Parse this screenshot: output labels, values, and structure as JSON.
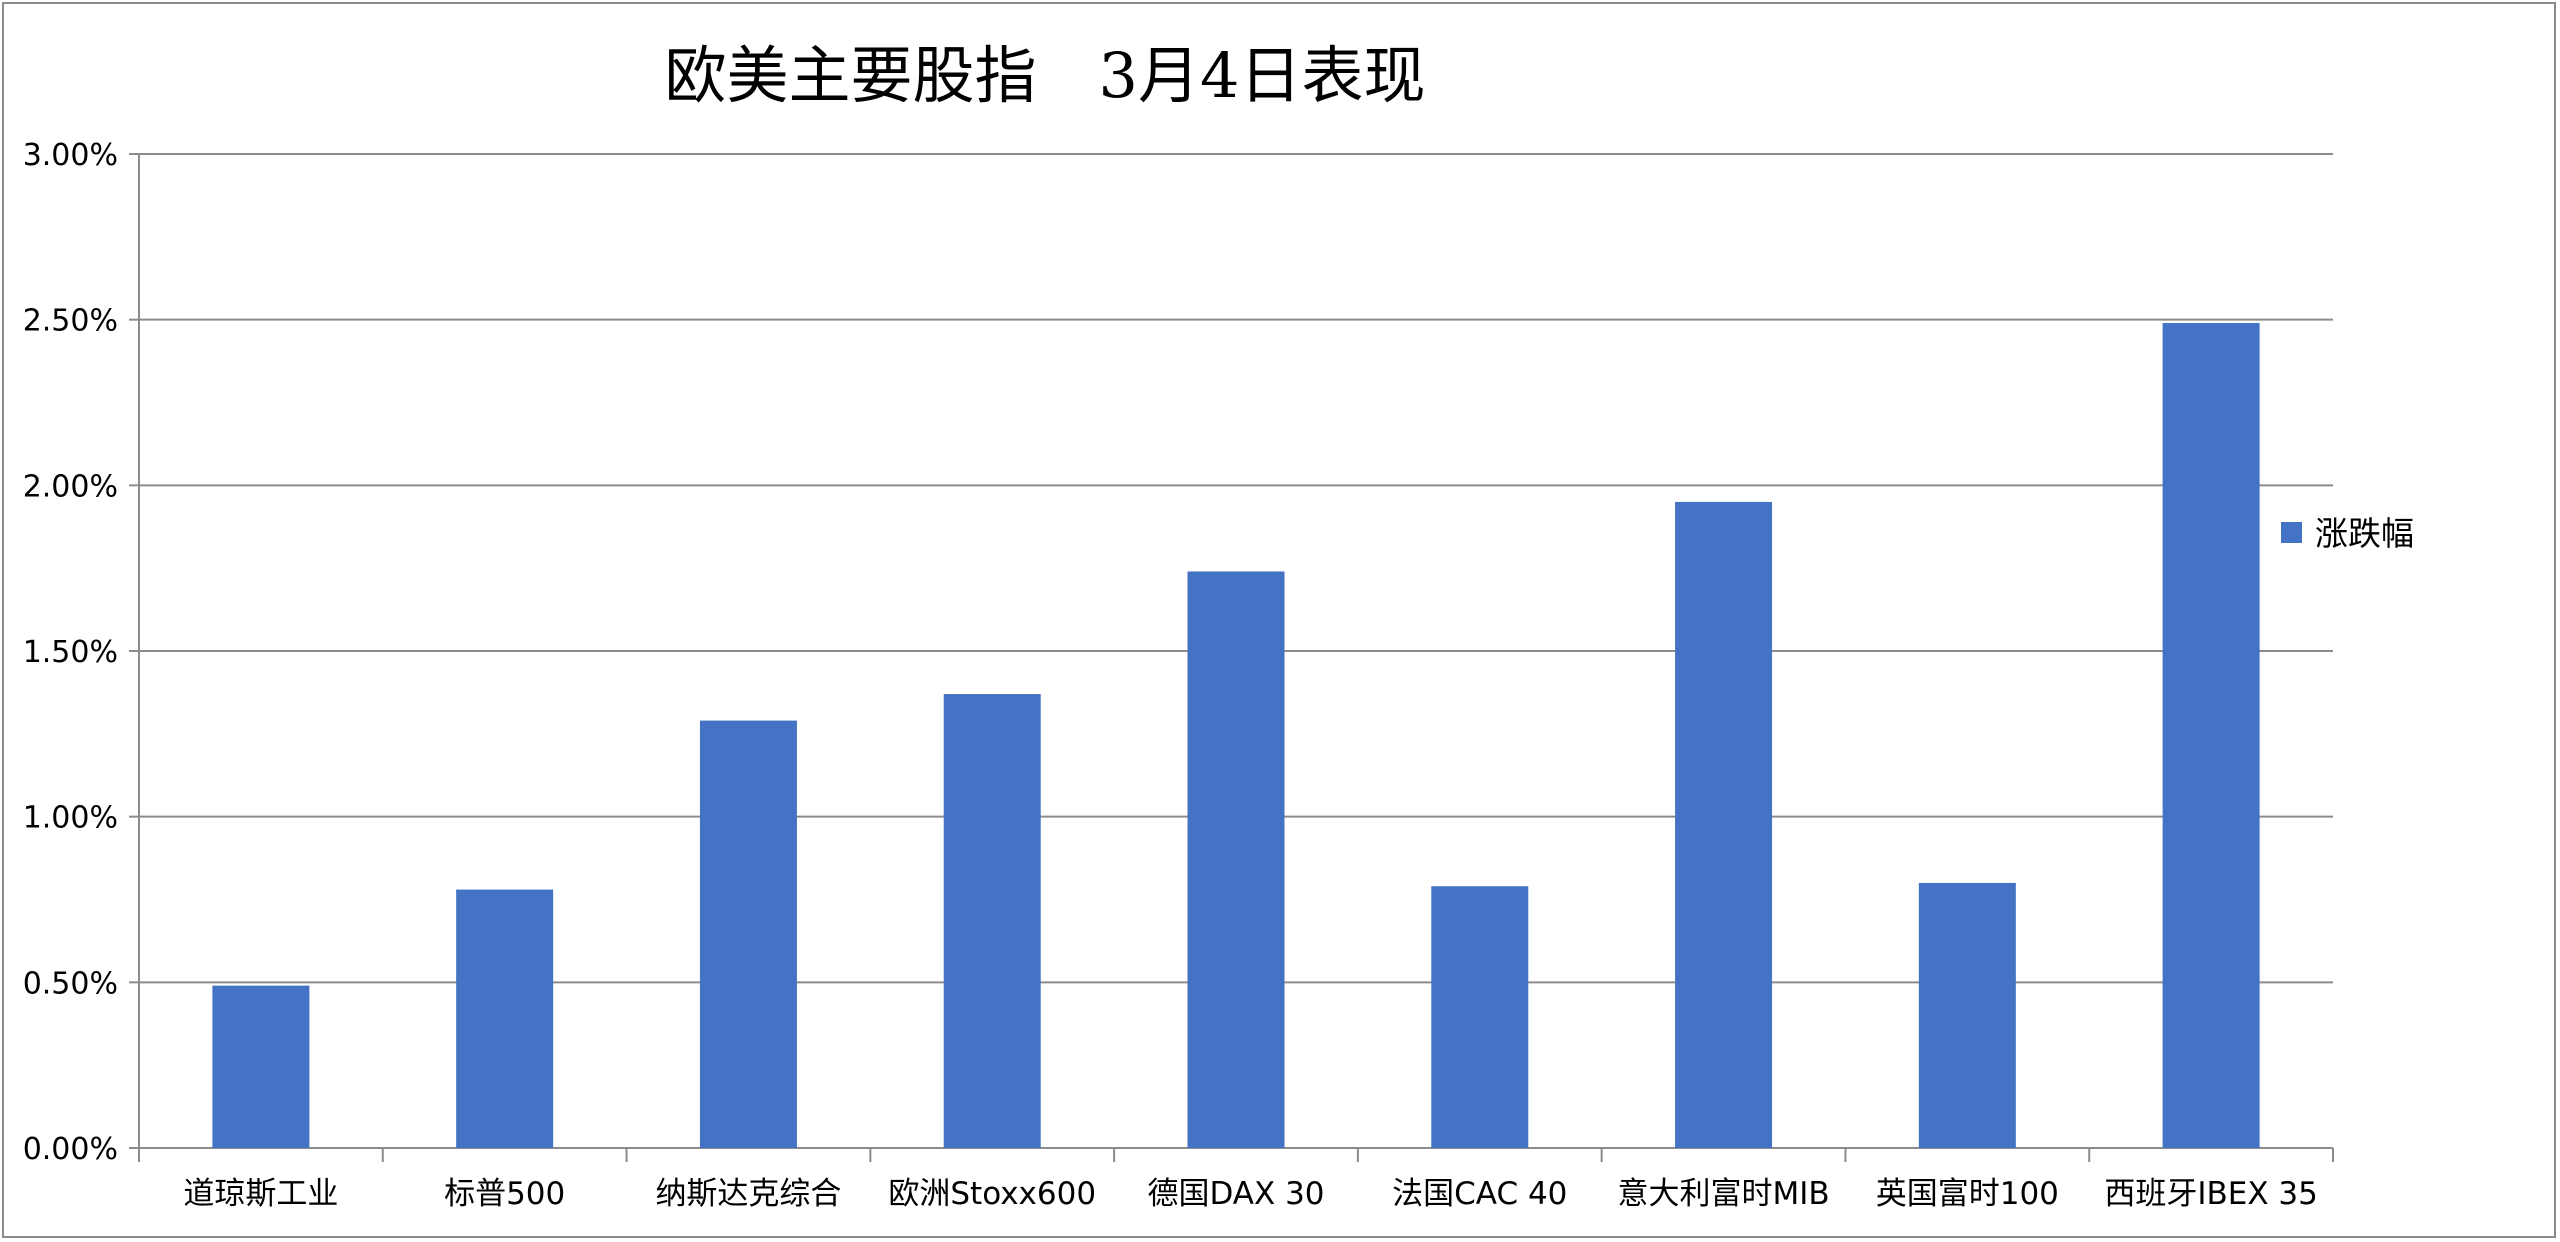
{
  "chart_data": {
    "type": "bar",
    "title": "欧美主要股指　3月4日表现",
    "xlabel": "",
    "ylabel": "",
    "categories": [
      "道琼斯工业",
      "标普500",
      "纳斯达克综合",
      "欧洲Stoxx600",
      "德国DAX 30",
      "法国CAC 40",
      "意大利富时MIB",
      "英国富时100",
      "西班牙IBEX 35"
    ],
    "series": [
      {
        "name": "涨跌幅",
        "values": [
          0.0049,
          0.0078,
          0.0129,
          0.0137,
          0.0174,
          0.0079,
          0.0195,
          0.008,
          0.0249
        ],
        "color": "#4472C4"
      }
    ],
    "ylim": [
      0,
      0.03
    ],
    "yticks": [
      "0.00%",
      "0.50%",
      "1.00%",
      "1.50%",
      "2.00%",
      "2.50%",
      "3.00%"
    ],
    "grid": true,
    "legend_position": "right"
  }
}
